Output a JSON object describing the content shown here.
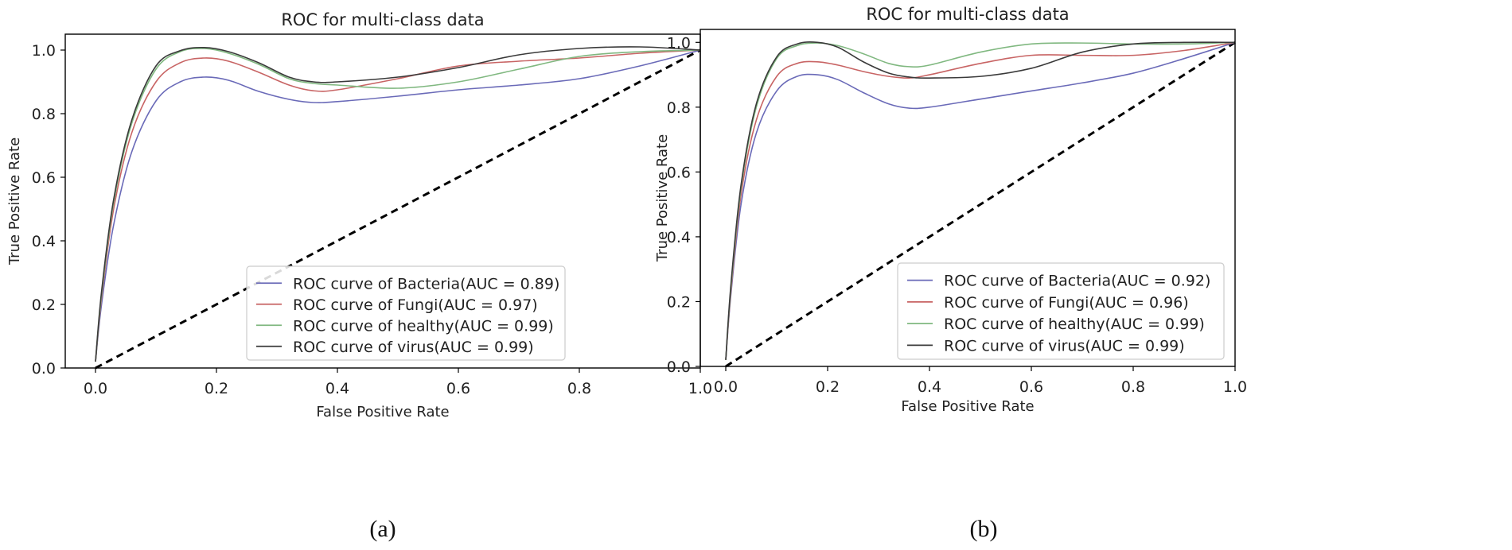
{
  "figure": {
    "panels": [
      {
        "caption": "(a)",
        "chart_data": {
          "type": "line",
          "title": "ROC for multi-class data",
          "xlabel": "False Positive Rate",
          "ylabel": "True Positive Rate",
          "xlim": [
            -0.05,
            1.0
          ],
          "ylim": [
            0.0,
            1.05
          ],
          "xticks": [
            0.0,
            0.2,
            0.4,
            0.6,
            0.8,
            1.0
          ],
          "yticks": [
            0.0,
            0.2,
            0.4,
            0.6,
            0.8,
            1.0
          ],
          "tick_labels_x": [
            "0.0",
            "0.2",
            "0.4",
            "0.6",
            "0.8",
            "1.0"
          ],
          "tick_labels_y": [
            "0.0",
            "0.2",
            "0.4",
            "0.6",
            "0.8",
            "1.0"
          ],
          "legend_position": "lower-right",
          "grid": false,
          "series": [
            {
              "name": "ROC curve of Bacteria(AUC = 0.89)",
              "color": "#6a6ab8",
              "x": [
                0,
                0.01,
                0.03,
                0.06,
                0.1,
                0.14,
                0.18,
                0.22,
                0.27,
                0.32,
                0.36,
                0.4,
                0.5,
                0.6,
                0.7,
                0.8,
                0.9,
                1.0
              ],
              "y": [
                0.02,
                0.2,
                0.45,
                0.68,
                0.84,
                0.9,
                0.915,
                0.905,
                0.87,
                0.845,
                0.835,
                0.838,
                0.855,
                0.875,
                0.89,
                0.91,
                0.95,
                1.0
              ]
            },
            {
              "name": "ROC curve of Fungi(AUC = 0.97)",
              "color": "#c86464",
              "x": [
                0,
                0.01,
                0.03,
                0.06,
                0.1,
                0.14,
                0.18,
                0.22,
                0.27,
                0.32,
                0.36,
                0.4,
                0.5,
                0.6,
                0.7,
                0.8,
                0.9,
                1.0
              ],
              "y": [
                0.02,
                0.22,
                0.5,
                0.74,
                0.9,
                0.96,
                0.975,
                0.965,
                0.93,
                0.89,
                0.872,
                0.875,
                0.91,
                0.95,
                0.965,
                0.975,
                0.99,
                1.0
              ]
            },
            {
              "name": "ROC curve of healthy(AUC = 0.99)",
              "color": "#80b880",
              "x": [
                0,
                0.01,
                0.03,
                0.06,
                0.1,
                0.14,
                0.18,
                0.22,
                0.27,
                0.32,
                0.36,
                0.4,
                0.5,
                0.6,
                0.7,
                0.8,
                0.9,
                1.0
              ],
              "y": [
                0.02,
                0.23,
                0.52,
                0.77,
                0.94,
                0.995,
                1.005,
                0.99,
                0.955,
                0.91,
                0.895,
                0.89,
                0.88,
                0.9,
                0.94,
                0.98,
                0.995,
                1.0
              ]
            },
            {
              "name": "ROC curve of virus(AUC = 0.99)",
              "color": "#3a3a3a",
              "x": [
                0,
                0.01,
                0.03,
                0.06,
                0.1,
                0.14,
                0.18,
                0.22,
                0.27,
                0.32,
                0.36,
                0.4,
                0.5,
                0.6,
                0.7,
                0.8,
                0.9,
                1.0
              ],
              "y": [
                0.02,
                0.24,
                0.53,
                0.78,
                0.95,
                0.998,
                1.008,
                0.995,
                0.96,
                0.915,
                0.9,
                0.9,
                0.915,
                0.945,
                0.985,
                1.005,
                1.01,
                1.0
              ]
            }
          ],
          "reference_line": {
            "x": [
              0,
              1
            ],
            "y": [
              0,
              1
            ],
            "style": "dashed"
          }
        }
      },
      {
        "caption": "(b)",
        "chart_data": {
          "type": "line",
          "title": "ROC for multi-class data",
          "xlabel": "False Positive Rate",
          "ylabel": "True Positive Rate",
          "xlim": [
            -0.05,
            1.0
          ],
          "ylim": [
            0.0,
            1.04
          ],
          "xticks": [
            0.0,
            0.2,
            0.4,
            0.6,
            0.8,
            1.0
          ],
          "yticks": [
            0.0,
            0.2,
            0.4,
            0.6,
            0.8,
            1.0
          ],
          "tick_labels_x": [
            "0.0",
            "0.2",
            "0.4",
            "0.6",
            "0.8",
            "1.0"
          ],
          "tick_labels_y": [
            "0.0",
            "0.2",
            "0.4",
            "0.6",
            "0.8",
            "1.0"
          ],
          "legend_position": "lower-right",
          "grid": false,
          "series": [
            {
              "name": "ROC curve of Bacteria(AUC = 0.92)",
              "color": "#6a6ab8",
              "x": [
                0,
                0.01,
                0.03,
                0.06,
                0.1,
                0.14,
                0.18,
                0.22,
                0.27,
                0.32,
                0.36,
                0.4,
                0.5,
                0.6,
                0.7,
                0.8,
                0.9,
                1.0
              ],
              "y": [
                0.02,
                0.22,
                0.5,
                0.72,
                0.85,
                0.895,
                0.9,
                0.885,
                0.845,
                0.81,
                0.797,
                0.8,
                0.825,
                0.85,
                0.875,
                0.905,
                0.95,
                1.0
              ]
            },
            {
              "name": "ROC curve of Fungi(AUC = 0.96)",
              "color": "#c86464",
              "x": [
                0,
                0.01,
                0.03,
                0.06,
                0.1,
                0.14,
                0.18,
                0.22,
                0.27,
                0.32,
                0.36,
                0.4,
                0.5,
                0.6,
                0.7,
                0.8,
                0.9,
                1.0
              ],
              "y": [
                0.02,
                0.23,
                0.53,
                0.76,
                0.895,
                0.935,
                0.94,
                0.93,
                0.91,
                0.895,
                0.89,
                0.9,
                0.935,
                0.96,
                0.96,
                0.96,
                0.975,
                1.0
              ]
            },
            {
              "name": "ROC curve of healthy(AUC = 0.99)",
              "color": "#80b880",
              "x": [
                0,
                0.01,
                0.03,
                0.06,
                0.1,
                0.14,
                0.18,
                0.22,
                0.27,
                0.32,
                0.36,
                0.4,
                0.5,
                0.6,
                0.7,
                0.8,
                0.9,
                1.0
              ],
              "y": [
                0.02,
                0.24,
                0.55,
                0.8,
                0.95,
                0.99,
                0.998,
                0.99,
                0.965,
                0.935,
                0.925,
                0.93,
                0.97,
                0.995,
                0.998,
                0.995,
                0.995,
                1.0
              ]
            },
            {
              "name": "ROC curve of virus(AUC = 0.99)",
              "color": "#3a3a3a",
              "x": [
                0,
                0.01,
                0.03,
                0.06,
                0.1,
                0.14,
                0.18,
                0.22,
                0.27,
                0.32,
                0.36,
                0.4,
                0.5,
                0.6,
                0.7,
                0.8,
                0.9,
                1.0
              ],
              "y": [
                0.02,
                0.25,
                0.56,
                0.81,
                0.955,
                0.995,
                1.0,
                0.985,
                0.94,
                0.905,
                0.893,
                0.89,
                0.895,
                0.92,
                0.97,
                0.995,
                1.0,
                1.0
              ]
            }
          ],
          "reference_line": {
            "x": [
              0,
              1
            ],
            "y": [
              0,
              1
            ],
            "style": "dashed"
          }
        }
      }
    ]
  }
}
